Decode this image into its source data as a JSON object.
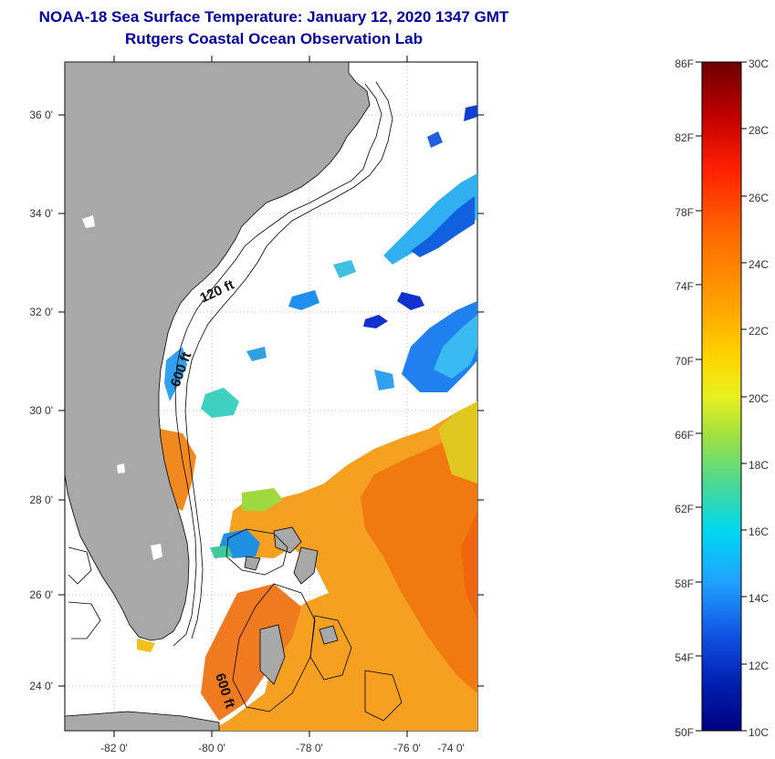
{
  "title": {
    "line1": "NOAA-18 Sea Surface Temperature:  January 12, 2020 1347 GMT",
    "line2": "Rutgers Coastal Ocean Observation Lab"
  },
  "map": {
    "lon_ticks": [
      "-82 0'",
      "-80 0'",
      "-78 0'",
      "-76 0'",
      "-74 0'"
    ],
    "lat_ticks": [
      "36 0'",
      "34 0'",
      "32 0'",
      "30 0'",
      "28 0'",
      "26 0'",
      "24 0'"
    ],
    "depth_labels": [
      "120 ft",
      "600 ft",
      "600 ft"
    ],
    "colors": {
      "land": "#a8a8a8",
      "ocean_cloud": "#ffffff",
      "coast": "#000000"
    }
  },
  "colorbar": {
    "fahrenheit": [
      "86F",
      "82F",
      "78F",
      "74F",
      "70F",
      "66F",
      "62F",
      "58F",
      "54F",
      "50F"
    ],
    "celsius": [
      "30C",
      "28C",
      "26C",
      "24C",
      "22C",
      "20C",
      "18C",
      "16C",
      "14C",
      "12C",
      "10C"
    ],
    "gradient": [
      "#6b0000",
      "#c00000",
      "#ff2000",
      "#ff6a00",
      "#ffa000",
      "#ffd400",
      "#e8f020",
      "#9ee040",
      "#40d8a0",
      "#00d8f0",
      "#20a0ff",
      "#1050e0",
      "#0020b0",
      "#000080"
    ]
  }
}
